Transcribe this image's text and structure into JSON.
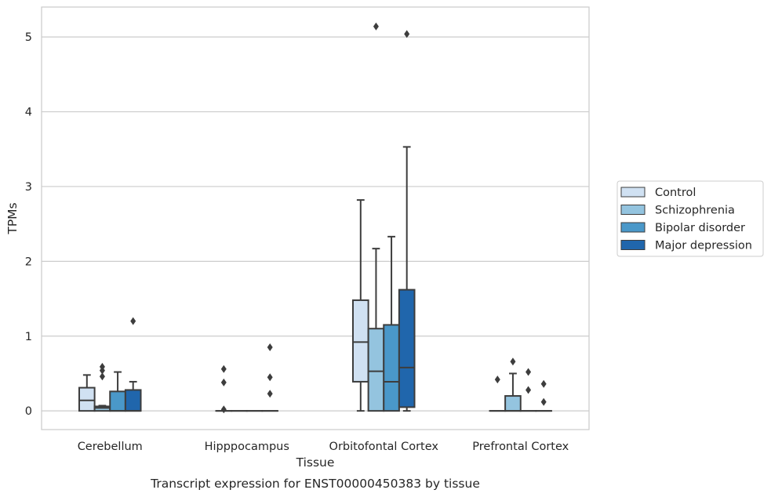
{
  "caption": "Transcript expression for ENST00000450383 by tissue",
  "chart_data": {
    "type": "box",
    "title": "",
    "xlabel": "Tissue",
    "ylabel": "TPMs",
    "categories": [
      "Cerebellum",
      "Hipppocampus",
      "Orbitofontal Cortex",
      "Prefrontal Cortex"
    ],
    "ylim": [
      -0.25,
      5.4
    ],
    "yticks": [
      0,
      1,
      2,
      3,
      4,
      5
    ],
    "grid": true,
    "legend_position": "right",
    "colors": [
      "#d0e1f2",
      "#94c4df",
      "#4a98c9",
      "#2066ac"
    ],
    "series": [
      {
        "name": "Control",
        "boxes": [
          {
            "whislo": 0.0,
            "q1": 0.0,
            "med": 0.14,
            "q3": 0.31,
            "whishi": 0.48,
            "fliers": []
          },
          {
            "whislo": 0.0,
            "q1": 0.0,
            "med": 0.0,
            "q3": 0.0,
            "whishi": 0.0,
            "fliers": [
              0.56,
              0.38,
              0.02
            ]
          },
          {
            "whislo": 0.0,
            "q1": 0.39,
            "med": 0.92,
            "q3": 1.48,
            "whishi": 2.82,
            "fliers": []
          },
          {
            "whislo": 0.0,
            "q1": 0.0,
            "med": 0.0,
            "q3": 0.0,
            "whishi": 0.0,
            "fliers": [
              0.42
            ]
          }
        ]
      },
      {
        "name": "Schizophrenia",
        "boxes": [
          {
            "whislo": 0.0,
            "q1": 0.0,
            "med": 0.04,
            "q3": 0.06,
            "whishi": 0.07,
            "fliers": [
              0.59,
              0.54,
              0.46
            ]
          },
          {
            "whislo": 0.0,
            "q1": 0.0,
            "med": 0.0,
            "q3": 0.0,
            "whishi": 0.0,
            "fliers": []
          },
          {
            "whislo": 0.0,
            "q1": 0.0,
            "med": 0.53,
            "q3": 1.1,
            "whishi": 2.17,
            "fliers": [
              5.14
            ]
          },
          {
            "whislo": 0.0,
            "q1": 0.0,
            "med": 0.0,
            "q3": 0.2,
            "whishi": 0.5,
            "fliers": [
              0.66
            ]
          }
        ]
      },
      {
        "name": "Bipolar disorder",
        "boxes": [
          {
            "whislo": 0.0,
            "q1": 0.0,
            "med": 0.0,
            "q3": 0.26,
            "whishi": 0.52,
            "fliers": []
          },
          {
            "whislo": 0.0,
            "q1": 0.0,
            "med": 0.0,
            "q3": 0.0,
            "whishi": 0.0,
            "fliers": []
          },
          {
            "whislo": 0.0,
            "q1": 0.0,
            "med": 0.39,
            "q3": 1.15,
            "whishi": 2.33,
            "fliers": []
          },
          {
            "whislo": 0.0,
            "q1": 0.0,
            "med": 0.0,
            "q3": 0.0,
            "whishi": 0.0,
            "fliers": [
              0.52,
              0.28
            ]
          }
        ]
      },
      {
        "name": "Major depression",
        "boxes": [
          {
            "whislo": 0.0,
            "q1": 0.0,
            "med": 0.0,
            "q3": 0.28,
            "whishi": 0.39,
            "fliers": [
              1.2
            ]
          },
          {
            "whislo": 0.0,
            "q1": 0.0,
            "med": 0.0,
            "q3": 0.0,
            "whishi": 0.0,
            "fliers": [
              0.85,
              0.45,
              0.23
            ]
          },
          {
            "whislo": 0.0,
            "q1": 0.05,
            "med": 0.58,
            "q3": 1.62,
            "whishi": 3.53,
            "fliers": [
              5.04
            ]
          },
          {
            "whislo": 0.0,
            "q1": 0.0,
            "med": 0.0,
            "q3": 0.0,
            "whishi": 0.0,
            "fliers": [
              0.36,
              0.12
            ]
          }
        ]
      }
    ]
  }
}
